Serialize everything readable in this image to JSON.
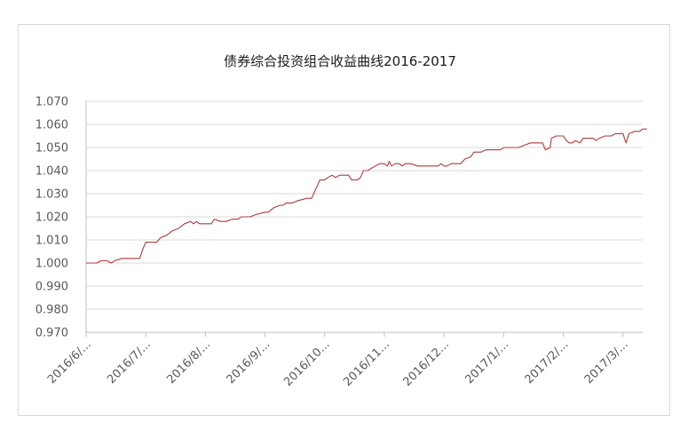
{
  "chart_data": {
    "type": "line",
    "title": "债券综合投资组合收益曲线2016-2017",
    "xlabel": "",
    "ylabel": "",
    "ylim": [
      0.97,
      1.07
    ],
    "yticks": [
      "1.070",
      "1.060",
      "1.050",
      "1.040",
      "1.030",
      "1.020",
      "1.010",
      "1.000",
      "0.990",
      "0.980",
      "0.970"
    ],
    "xticks": [
      "2016/6/...",
      "2016/7/...",
      "2016/8/...",
      "2016/9/...",
      "2016/10...",
      "2016/11...",
      "2016/12...",
      "2017/1/...",
      "2017/2/...",
      "2017/3/..."
    ],
    "grid": true,
    "legend": "none",
    "series": [
      {
        "color": "#b03a3a",
        "points": [
          [
            0.0,
            1.0
          ],
          [
            0.1,
            1.0
          ],
          [
            0.18,
            1.0
          ],
          [
            0.25,
            1.001
          ],
          [
            0.35,
            1.001
          ],
          [
            0.42,
            1.0
          ],
          [
            0.48,
            1.001
          ],
          [
            0.6,
            1.002
          ],
          [
            0.8,
            1.002
          ],
          [
            0.9,
            1.002
          ],
          [
            0.95,
            1.006
          ],
          [
            1.0,
            1.009
          ],
          [
            1.1,
            1.009
          ],
          [
            1.18,
            1.009
          ],
          [
            1.25,
            1.011
          ],
          [
            1.35,
            1.012
          ],
          [
            1.45,
            1.014
          ],
          [
            1.55,
            1.015
          ],
          [
            1.65,
            1.017
          ],
          [
            1.75,
            1.018
          ],
          [
            1.8,
            1.017
          ],
          [
            1.85,
            1.018
          ],
          [
            1.9,
            1.017
          ],
          [
            2.0,
            1.017
          ],
          [
            2.1,
            1.017
          ],
          [
            2.15,
            1.019
          ],
          [
            2.25,
            1.018
          ],
          [
            2.35,
            1.018
          ],
          [
            2.45,
            1.019
          ],
          [
            2.55,
            1.019
          ],
          [
            2.6,
            1.02
          ],
          [
            2.75,
            1.02
          ],
          [
            2.85,
            1.021
          ],
          [
            3.0,
            1.022
          ],
          [
            3.05,
            1.022
          ],
          [
            3.15,
            1.024
          ],
          [
            3.25,
            1.025
          ],
          [
            3.3,
            1.025
          ],
          [
            3.35,
            1.026
          ],
          [
            3.45,
            1.026
          ],
          [
            3.55,
            1.027
          ],
          [
            3.7,
            1.028
          ],
          [
            3.78,
            1.028
          ],
          [
            3.85,
            1.032
          ],
          [
            3.92,
            1.036
          ],
          [
            4.0,
            1.036
          ],
          [
            4.05,
            1.037
          ],
          [
            4.12,
            1.038
          ],
          [
            4.18,
            1.037
          ],
          [
            4.25,
            1.038
          ],
          [
            4.32,
            1.038
          ],
          [
            4.4,
            1.038
          ],
          [
            4.45,
            1.036
          ],
          [
            4.55,
            1.036
          ],
          [
            4.6,
            1.037
          ],
          [
            4.65,
            1.04
          ],
          [
            4.72,
            1.04
          ],
          [
            4.78,
            1.041
          ],
          [
            4.85,
            1.042
          ],
          [
            4.92,
            1.043
          ],
          [
            5.0,
            1.043
          ],
          [
            5.05,
            1.042
          ],
          [
            5.08,
            1.044
          ],
          [
            5.12,
            1.042
          ],
          [
            5.18,
            1.043
          ],
          [
            5.25,
            1.043
          ],
          [
            5.3,
            1.042
          ],
          [
            5.35,
            1.043
          ],
          [
            5.45,
            1.043
          ],
          [
            5.55,
            1.042
          ],
          [
            5.7,
            1.042
          ],
          [
            5.8,
            1.042
          ],
          [
            5.9,
            1.042
          ],
          [
            5.95,
            1.043
          ],
          [
            6.0,
            1.042
          ],
          [
            6.05,
            1.042
          ],
          [
            6.12,
            1.043
          ],
          [
            6.2,
            1.043
          ],
          [
            6.28,
            1.043
          ],
          [
            6.35,
            1.045
          ],
          [
            6.45,
            1.046
          ],
          [
            6.5,
            1.048
          ],
          [
            6.62,
            1.048
          ],
          [
            6.7,
            1.049
          ],
          [
            6.85,
            1.049
          ],
          [
            6.95,
            1.049
          ],
          [
            7.0,
            1.05
          ],
          [
            7.15,
            1.05
          ],
          [
            7.25,
            1.05
          ],
          [
            7.35,
            1.051
          ],
          [
            7.45,
            1.052
          ],
          [
            7.55,
            1.052
          ],
          [
            7.65,
            1.052
          ],
          [
            7.7,
            1.049
          ],
          [
            7.78,
            1.05
          ],
          [
            7.8,
            1.054
          ],
          [
            7.88,
            1.055
          ],
          [
            8.0,
            1.055
          ],
          [
            8.05,
            1.053
          ],
          [
            8.1,
            1.052
          ],
          [
            8.15,
            1.052
          ],
          [
            8.2,
            1.053
          ],
          [
            8.28,
            1.052
          ],
          [
            8.33,
            1.054
          ],
          [
            8.42,
            1.054
          ],
          [
            8.5,
            1.054
          ],
          [
            8.55,
            1.053
          ],
          [
            8.6,
            1.054
          ],
          [
            8.7,
            1.055
          ],
          [
            8.8,
            1.055
          ],
          [
            8.88,
            1.056
          ],
          [
            9.0,
            1.056
          ],
          [
            9.05,
            1.052
          ],
          [
            9.1,
            1.056
          ],
          [
            9.2,
            1.057
          ],
          [
            9.28,
            1.057
          ],
          [
            9.33,
            1.058
          ],
          [
            9.4,
            1.058
          ]
        ]
      }
    ]
  }
}
